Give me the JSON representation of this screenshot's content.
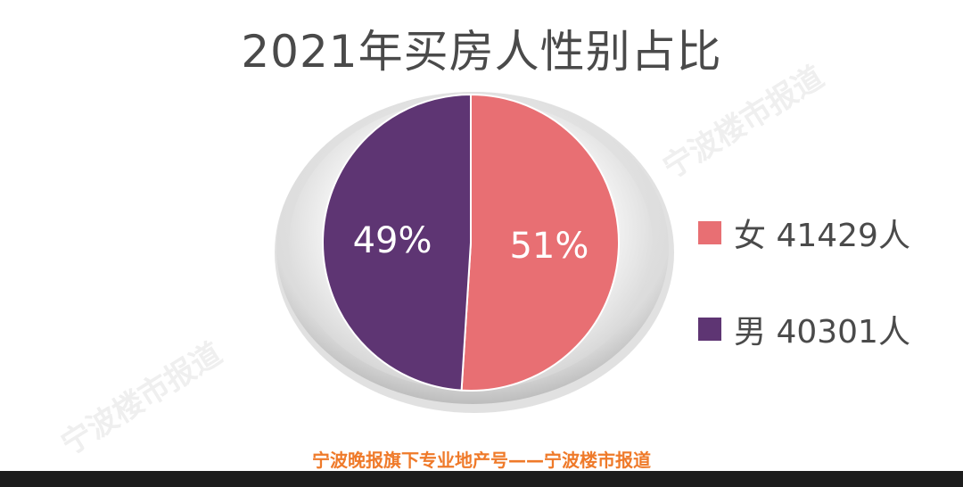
{
  "title": "2021年买房人性别占比",
  "footer": "宁波晚报旗下专业地产号——宁波楼市报道",
  "watermark": "宁波楼市报道",
  "chart_data": {
    "type": "pie",
    "title": "2021年买房人性别占比",
    "slices": [
      {
        "name": "女",
        "count": 41429,
        "unit": "人",
        "percent": 51,
        "label": "51%",
        "legend": "女 41429人",
        "color": "#e86f73"
      },
      {
        "name": "男",
        "count": 40301,
        "unit": "人",
        "percent": 49,
        "label": "49%",
        "legend": "男 40301人",
        "color": "#5e3573"
      }
    ],
    "legend_position": "right"
  }
}
